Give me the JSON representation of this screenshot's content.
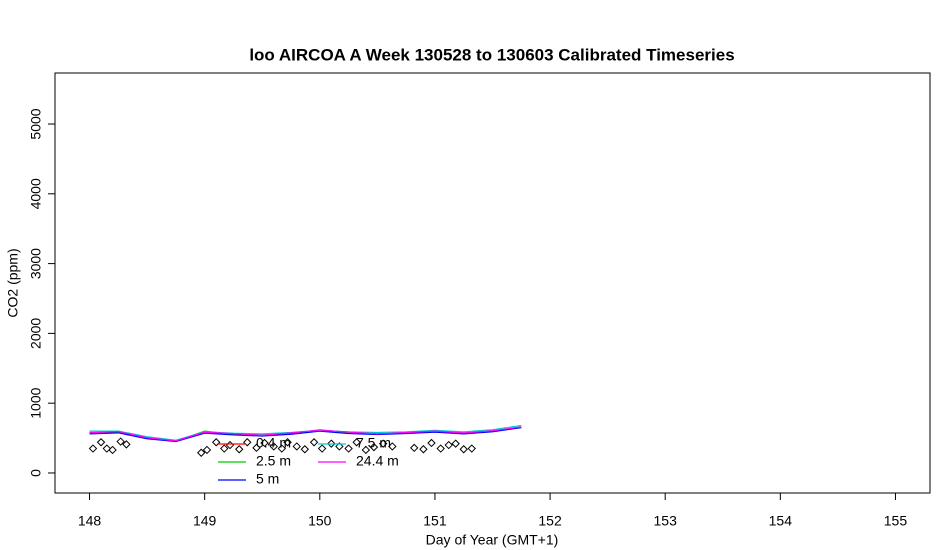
{
  "chart_data": {
    "type": "line",
    "title": "loo AIRCOA A  Week 130528 to 130603  Calibrated Timeseries",
    "x_label": "Day of Year (GMT+1)",
    "y_label": "CO2 (ppm)",
    "xlim": [
      147.7,
      155.3
    ],
    "ylim": [
      -287,
      5731
    ],
    "xticks": [
      148,
      149,
      150,
      151,
      152,
      153,
      154,
      155
    ],
    "yticks": [
      0,
      1000,
      2000,
      3000,
      4000,
      5000
    ],
    "x": [
      148.0,
      148.25,
      148.5,
      148.75,
      149.0,
      149.25,
      149.5,
      149.75,
      150.0,
      150.25,
      150.5,
      150.75,
      151.0,
      151.25,
      151.5,
      151.75
    ],
    "series": [
      {
        "name": "0.4 m",
        "color": "#ff0000",
        "values": [
          580,
          590,
          510,
          460,
          580,
          560,
          540,
          570,
          610,
          580,
          560,
          570,
          600,
          570,
          600,
          660
        ]
      },
      {
        "name": "2.5 m",
        "color": "#00cd00",
        "values": [
          570,
          585,
          500,
          455,
          600,
          555,
          545,
          565,
          620,
          575,
          555,
          575,
          590,
          565,
          595,
          655
        ]
      },
      {
        "name": "5 m",
        "color": "#0000ff",
        "values": [
          560,
          575,
          490,
          450,
          570,
          545,
          530,
          555,
          600,
          565,
          550,
          565,
          585,
          560,
          590,
          650
        ]
      },
      {
        "name": "7.5 m",
        "color": "#00cdcd",
        "values": [
          600,
          600,
          520,
          470,
          590,
          570,
          560,
          580,
          610,
          590,
          580,
          590,
          610,
          590,
          620,
          680
        ]
      },
      {
        "name": "24.4 m",
        "color": "#ff00ff",
        "values": [
          575,
          595,
          505,
          460,
          585,
          565,
          540,
          575,
          615,
          585,
          560,
          580,
          600,
          575,
          605,
          660
        ]
      },
      {
        "color": "#000000",
        "marker": "diamond",
        "x": [
          148.03,
          148.1,
          148.15,
          148.2,
          148.27,
          148.32,
          148.97,
          149.02,
          149.1,
          149.17,
          149.22,
          149.3,
          149.37,
          149.45,
          149.52,
          149.6,
          149.67,
          149.72,
          149.8,
          149.87,
          149.95,
          150.02,
          150.1,
          150.17,
          150.25,
          150.32,
          150.4,
          150.47,
          150.55,
          150.63,
          150.82,
          150.9,
          150.97,
          151.05,
          151.12,
          151.18,
          151.25,
          151.32
        ],
        "values": [
          350,
          440,
          350,
          330,
          450,
          410,
          290,
          330,
          440,
          350,
          400,
          340,
          440,
          360,
          430,
          380,
          350,
          440,
          380,
          340,
          440,
          350,
          420,
          380,
          350,
          440,
          330,
          370,
          420,
          380,
          360,
          340,
          430,
          350,
          400,
          420,
          340,
          350
        ]
      }
    ]
  }
}
